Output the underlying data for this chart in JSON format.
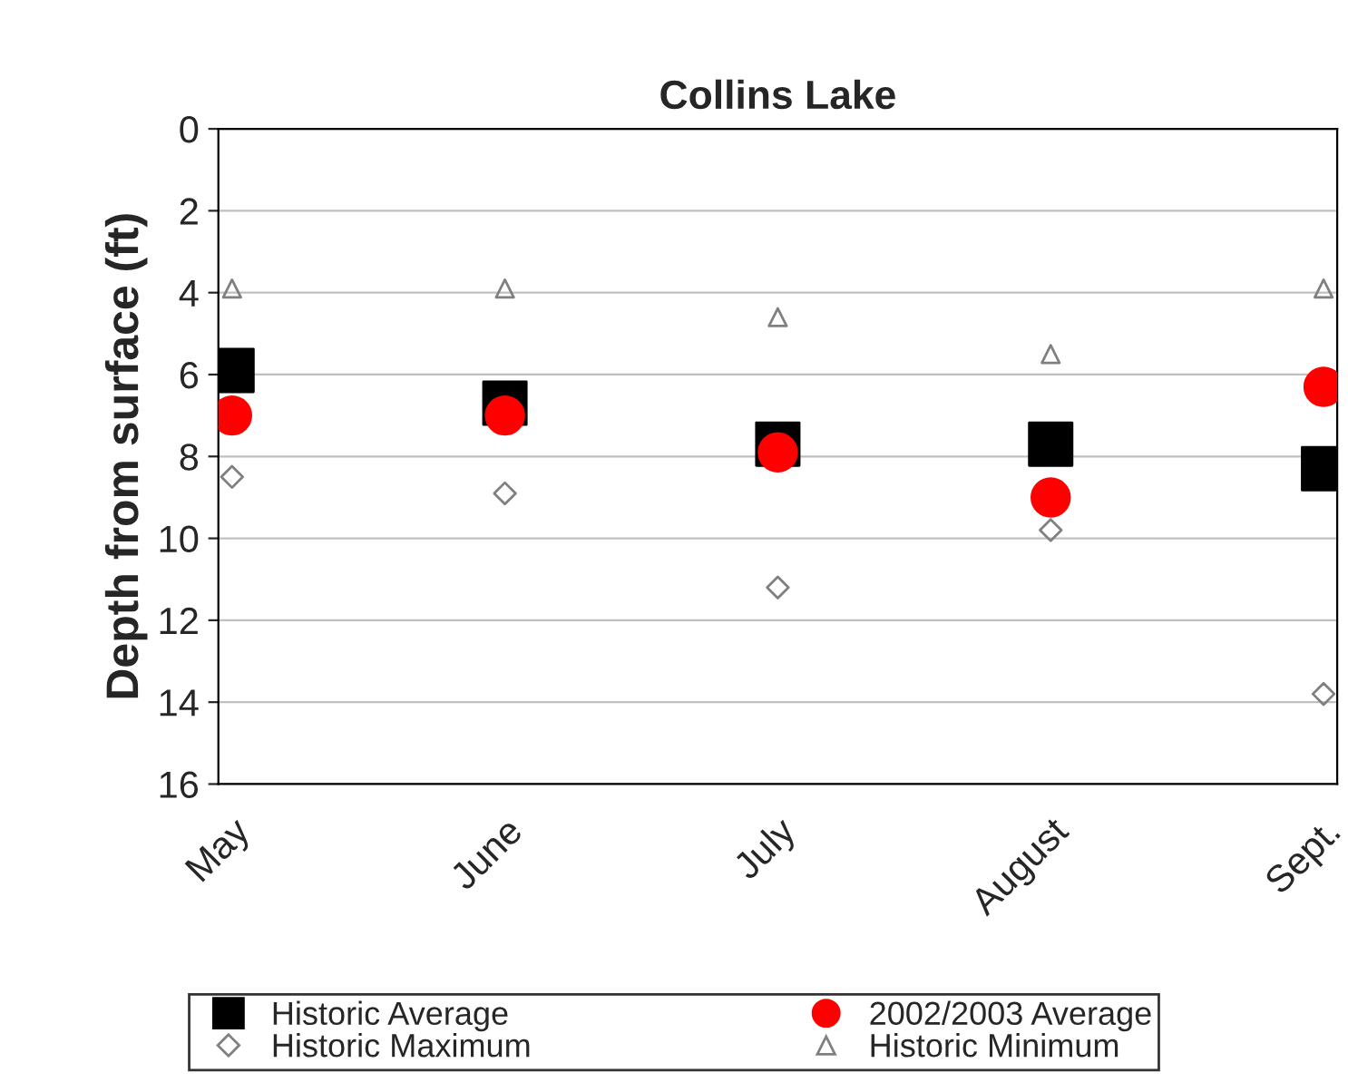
{
  "chart_data": {
    "type": "scatter",
    "title": "Collins Lake",
    "ylabel": "Depth from surface (ft)",
    "categories": [
      "May",
      "June",
      "July",
      "August",
      "Sept."
    ],
    "series": [
      {
        "name": "Historic Average",
        "color": "#000000",
        "marker": "square",
        "values": [
          5.9,
          6.7,
          7.7,
          7.7,
          8.3
        ]
      },
      {
        "name": "2002/2003 Average",
        "color": "#ff0000",
        "marker": "circle",
        "values": [
          7.0,
          7.0,
          7.9,
          9.0,
          6.3
        ]
      },
      {
        "name": "Historic Maximum",
        "color": "#808080",
        "marker": "diamond",
        "values": [
          8.5,
          8.9,
          11.2,
          9.8,
          13.8
        ]
      },
      {
        "name": "Historic Minimum",
        "color": "#808080",
        "marker": "triangle",
        "values": [
          3.9,
          3.9,
          4.6,
          5.5,
          3.9
        ]
      }
    ],
    "ylim": [
      16,
      0
    ],
    "yticks": [
      0,
      2,
      4,
      6,
      8,
      10,
      12,
      14,
      16
    ],
    "grid": "y",
    "legend": "bottom"
  }
}
